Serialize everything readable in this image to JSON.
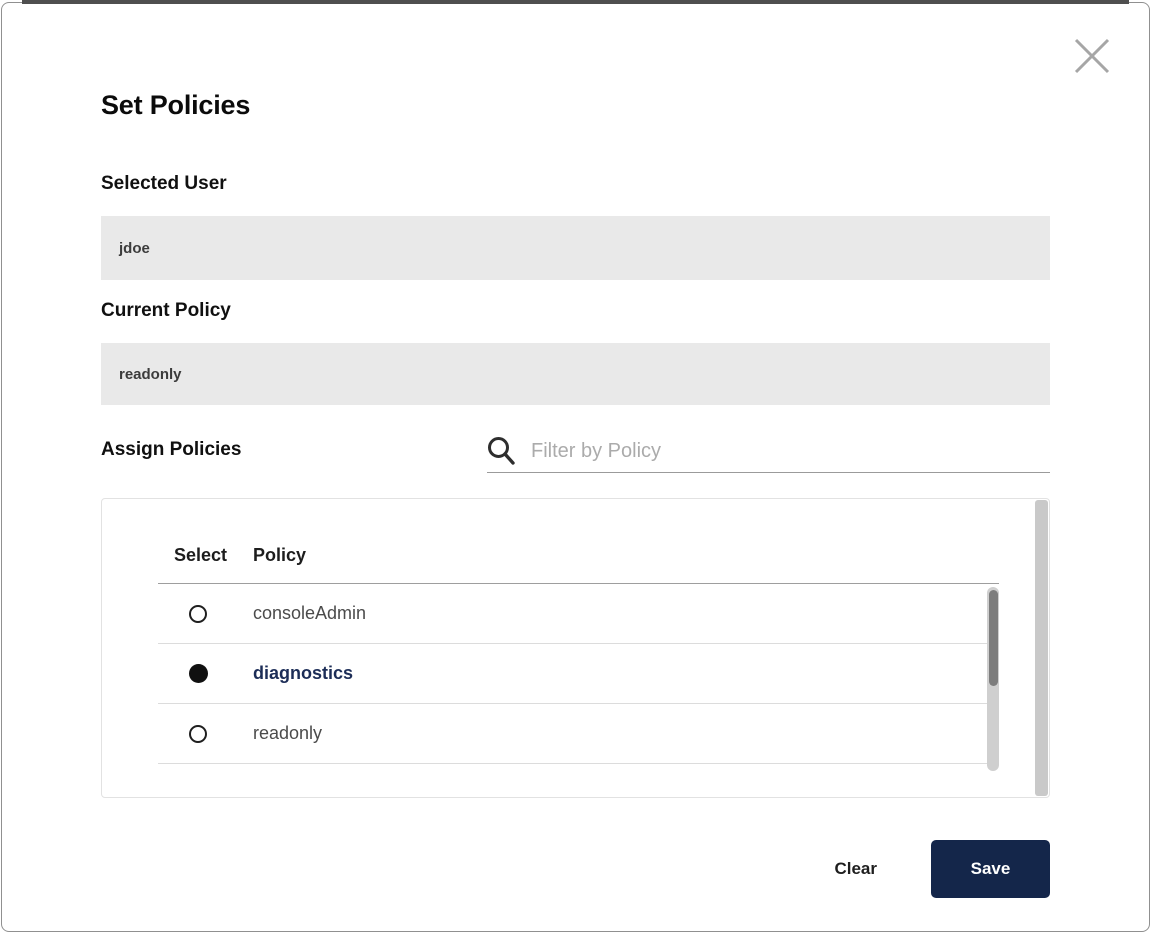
{
  "modal": {
    "title": "Set Policies"
  },
  "fields": {
    "selected_user": {
      "label": "Selected User",
      "value": "jdoe"
    },
    "current_policy": {
      "label": "Current Policy",
      "value": "readonly"
    }
  },
  "assign": {
    "heading": "Assign Policies",
    "filter_placeholder": "Filter by Policy",
    "filter_value": "",
    "table": {
      "columns": {
        "select": "Select",
        "policy": "Policy"
      },
      "rows": [
        {
          "policy": "consoleAdmin",
          "selected": false
        },
        {
          "policy": "diagnostics",
          "selected": true
        },
        {
          "policy": "readonly",
          "selected": false
        }
      ]
    }
  },
  "footer": {
    "clear_label": "Clear",
    "save_label": "Save"
  },
  "colors": {
    "accent_navy": "#14264a",
    "selected_policy_text": "#1c2d57",
    "field_background": "#e9e9e9",
    "top_strip": "#4f4f4f"
  }
}
